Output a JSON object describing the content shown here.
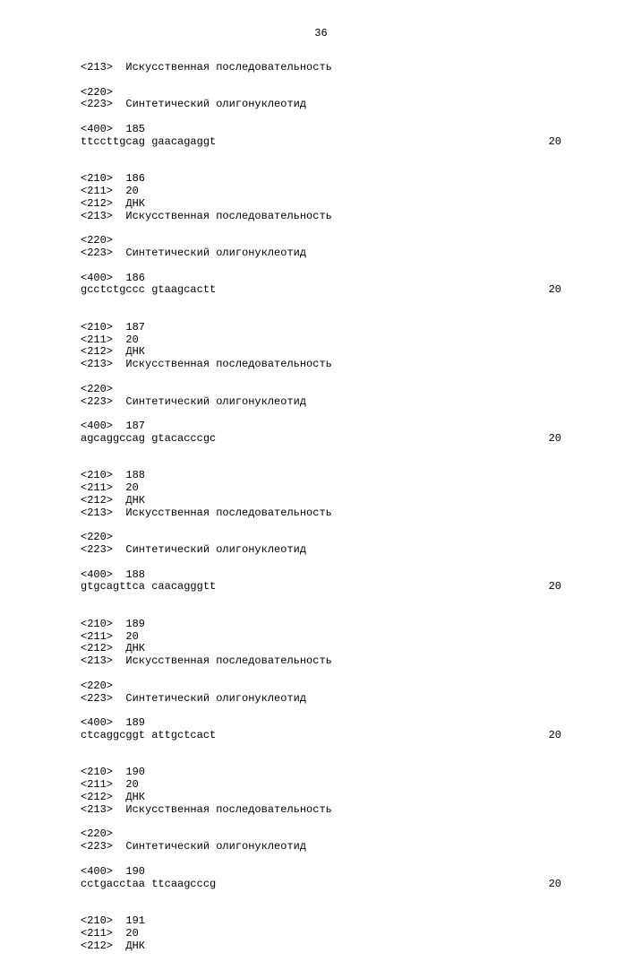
{
  "pageNumber": "36",
  "lengthValue": "20",
  "labels": {
    "artificial": "Искусственная последовательность",
    "synthetic": "Синтетический олигонуклеотид",
    "dna": "ДНК",
    "len20": "20"
  },
  "headerBlock": {
    "tag213": "<213>",
    "tag220": "<220>",
    "tag223": "<223>",
    "tag400": "<400>",
    "seqId": "185",
    "sequence": "ttccttgcag gaacagaggt"
  },
  "entries": [
    {
      "seqId": "186",
      "sequence": "gcctctgccc gtaagcactt"
    },
    {
      "seqId": "187",
      "sequence": "agcaggccag gtacacccgc"
    },
    {
      "seqId": "188",
      "sequence": "gtgcagttca caacagggtt"
    },
    {
      "seqId": "189",
      "sequence": "ctcaggcggt attgctcact"
    },
    {
      "seqId": "190",
      "sequence": "cctgacctaa ttcaagcccg"
    }
  ],
  "tailBlock": {
    "seqId": "191"
  },
  "tags": {
    "t210": "<210>",
    "t211": "<211>",
    "t212": "<212>",
    "t213": "<213>",
    "t220": "<220>",
    "t223": "<223>",
    "t400": "<400>"
  }
}
